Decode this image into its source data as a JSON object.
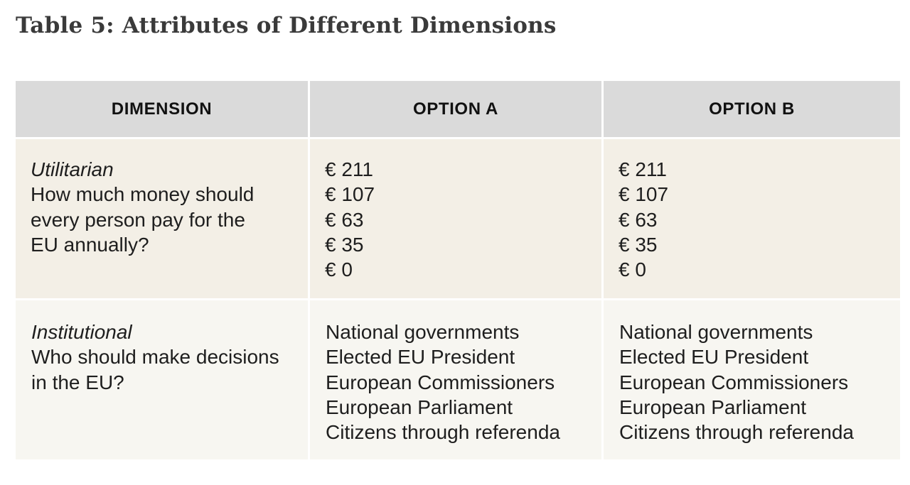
{
  "title": "Table 5: Attributes of Different Dimensions",
  "headers": [
    "DIMENSION",
    "OPTION A",
    "OPTION B"
  ],
  "rows": [
    {
      "dimension_name": "Utilitarian",
      "question_lines": [
        "How much money should",
        "every person pay for the",
        "EU annually?"
      ],
      "option_a": [
        "€ 211",
        "€ 107",
        "€ 63",
        "€ 35",
        "€ 0"
      ],
      "option_b": [
        "€ 211",
        "€ 107",
        "€ 63",
        "€ 35",
        "€ 0"
      ]
    },
    {
      "dimension_name": "Institutional",
      "question_lines": [
        "Who should make decisions",
        "in the EU?"
      ],
      "option_a": [
        "National governments",
        "Elected EU President",
        "European Commissioners",
        "European Parliament",
        "Citizens through referenda"
      ],
      "option_b": [
        "National governments",
        "Elected EU President",
        "European Commissioners",
        "European Parliament",
        "Citizens through referenda"
      ]
    }
  ]
}
